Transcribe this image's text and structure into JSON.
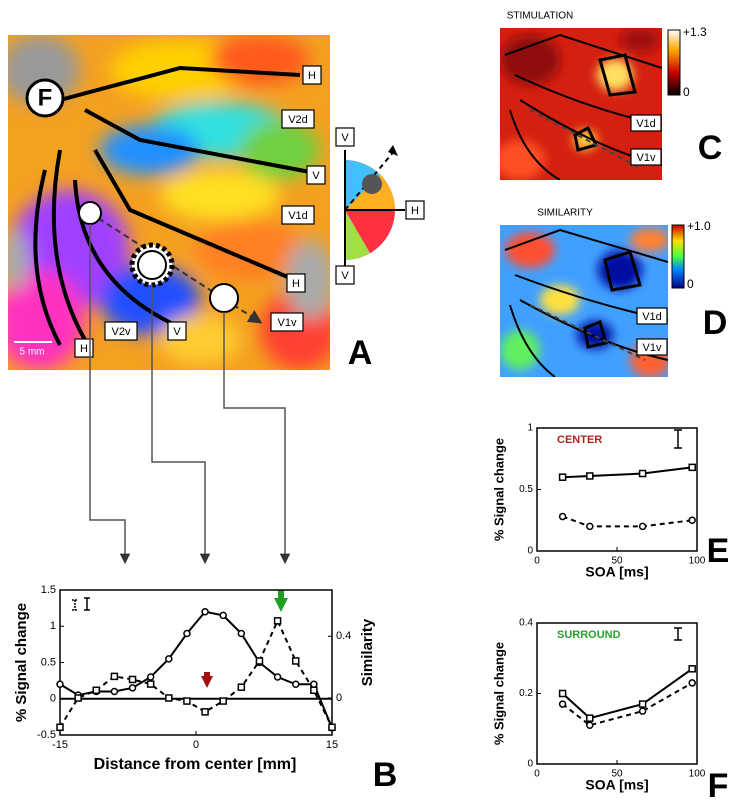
{
  "panel_a": {
    "labels": [
      "F",
      "H",
      "V2d",
      "V",
      "V1d",
      "H",
      "V2v",
      "V",
      "H",
      "V1v"
    ],
    "wheel_labels": [
      "V",
      "H",
      "V"
    ],
    "scale": "5 mm",
    "letter": "A"
  },
  "panel_c": {
    "title": "STIMULATION",
    "colorbar": [
      "+1.3",
      "0"
    ],
    "labels": [
      "V1d",
      "V1v"
    ],
    "letter": "C"
  },
  "panel_d": {
    "title": "SIMILARITY",
    "colorbar": [
      "+1.0",
      "0"
    ],
    "labels": [
      "V1d",
      "V1v"
    ],
    "letter": "D"
  },
  "chart_data": [
    {
      "type": "line",
      "panel_label": "B",
      "x_label": "Distance from center [mm]",
      "y_label": "% Signal change",
      "y2_label": "Similarity",
      "x": [
        -15,
        -13,
        -11,
        -9,
        -7,
        -5,
        -3,
        -1,
        1,
        3,
        5,
        7,
        9,
        11,
        13,
        15
      ],
      "xlim": [
        -15,
        15
      ],
      "xticks": [
        -15,
        0,
        15
      ],
      "ylim": [
        -0.5,
        1.5
      ],
      "yticks": [
        -0.5,
        0,
        0.5,
        1,
        1.5
      ],
      "y2lim": [
        -0.24,
        0.7
      ],
      "y2ticks": [
        0,
        0.4
      ],
      "series": [
        {
          "color": "#000000",
          "marker": "circle",
          "dashed": false,
          "values": [
            0.2,
            0.05,
            0.1,
            0.1,
            0.15,
            0.3,
            0.55,
            0.9,
            1.2,
            1.15,
            0.9,
            0.5,
            0.3,
            0.2,
            0.2,
            -0.4
          ]
        },
        {
          "color": "#000000",
          "marker": "square",
          "dashed": true,
          "axis": "y2",
          "values": [
            -0.19,
            0,
            0.05,
            0.14,
            0.12,
            0.09,
            0,
            -0.02,
            -0.09,
            -0.02,
            0.07,
            0.24,
            0.5,
            0.24,
            0.05,
            -0.19
          ]
        }
      ]
    },
    {
      "type": "line",
      "panel_label": "E",
      "title": "CENTER",
      "title_color": "#b22222",
      "x_label": "SOA [ms]",
      "y_label": "% Signal change",
      "x": [
        16,
        33,
        66,
        97
      ],
      "xlim": [
        0,
        100
      ],
      "xticks": [
        0,
        50,
        100
      ],
      "ylim": [
        0,
        1
      ],
      "yticks": [
        0,
        0.5,
        1
      ],
      "series": [
        {
          "color": "#000000",
          "marker": "square",
          "dashed": false,
          "values": [
            0.6,
            0.61,
            0.63,
            0.68
          ]
        },
        {
          "color": "#000000",
          "marker": "circle",
          "dashed": true,
          "values": [
            0.28,
            0.2,
            0.2,
            0.25
          ]
        }
      ]
    },
    {
      "type": "line",
      "panel_label": "F",
      "title": "SURROUND",
      "title_color": "#2ca02c",
      "x_label": "SOA [ms]",
      "y_label": "% Signal change",
      "x": [
        16,
        33,
        66,
        97
      ],
      "xlim": [
        0,
        100
      ],
      "xticks": [
        0,
        50,
        100
      ],
      "ylim": [
        0,
        0.4
      ],
      "yticks": [
        0,
        0.2,
        0.4
      ],
      "series": [
        {
          "color": "#000000",
          "marker": "square",
          "dashed": false,
          "values": [
            0.2,
            0.13,
            0.17,
            0.27
          ]
        },
        {
          "color": "#000000",
          "marker": "circle",
          "dashed": true,
          "values": [
            0.17,
            0.11,
            0.15,
            0.23
          ]
        }
      ]
    }
  ]
}
